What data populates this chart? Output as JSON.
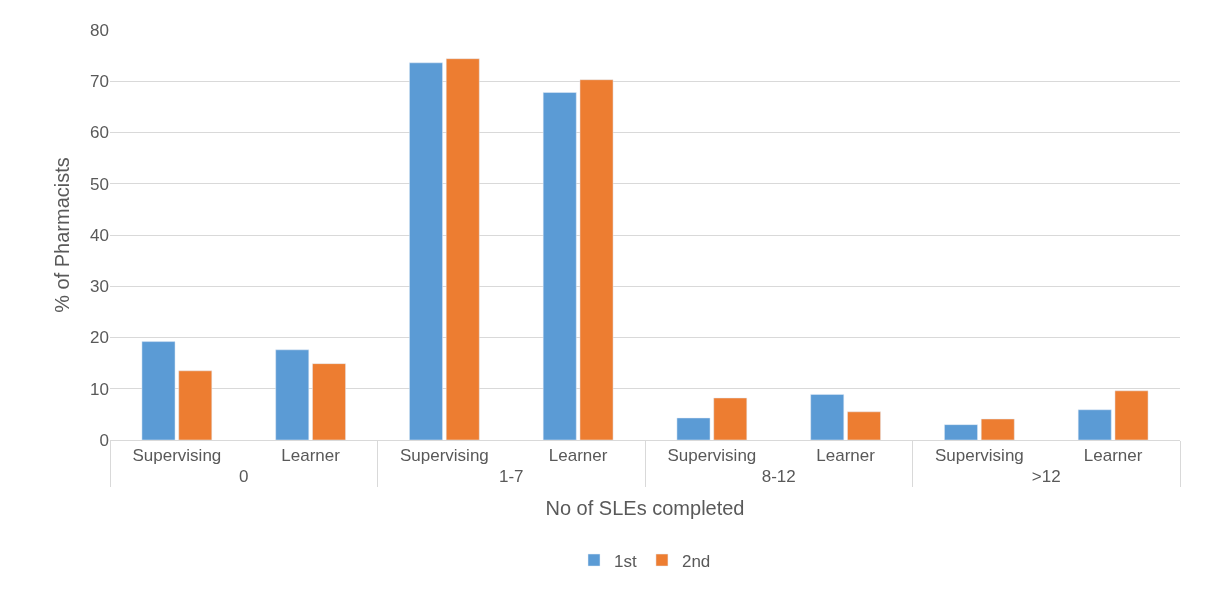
{
  "chart_data": {
    "type": "bar",
    "xlabel": "No of SLEs completed",
    "ylabel": "% of Pharmacists",
    "categories": [
      "Supervising",
      "Learner",
      "Supervising",
      "Learner",
      "Supervising",
      "Learner",
      "Supervising",
      "Learner"
    ],
    "annotations": [
      "0",
      "1-7",
      "8-12",
      ">12"
    ],
    "series": [
      {
        "name": "1st",
        "color": "#5b9bd5",
        "values": [
          19.2,
          17.6,
          73.6,
          67.8,
          4.3,
          8.9,
          3.0,
          5.9
        ]
      },
      {
        "name": "2nd",
        "color": "#ed7d31",
        "values": [
          13.5,
          14.9,
          74.4,
          70.3,
          8.2,
          5.5,
          4.1,
          9.6
        ]
      }
    ],
    "ylim": [
      0,
      80
    ],
    "yticks": [
      0,
      10,
      20,
      30,
      40,
      50,
      60,
      70,
      80
    ],
    "grid": "y",
    "legend": "bottom"
  }
}
